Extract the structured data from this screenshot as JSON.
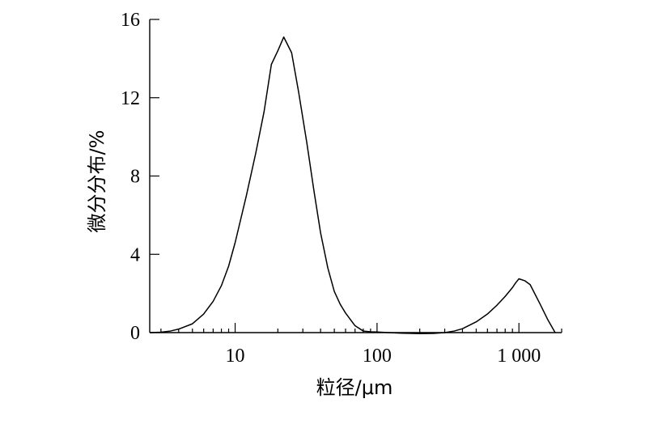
{
  "chart_data": {
    "type": "line",
    "title": "",
    "xlabel": "粒径/μm",
    "ylabel": "微分分布/%",
    "x_scale": "log",
    "xlim": [
      2.5,
      2000
    ],
    "ylim": [
      0,
      16
    ],
    "x_ticks": [
      {
        "value": 10,
        "label": "10"
      },
      {
        "value": 100,
        "label": "100"
      },
      {
        "value": 1000,
        "label": "1 000"
      }
    ],
    "y_ticks": [
      {
        "value": 0,
        "label": "0"
      },
      {
        "value": 4,
        "label": "4"
      },
      {
        "value": 8,
        "label": "8"
      },
      {
        "value": 12,
        "label": "12"
      },
      {
        "value": 16,
        "label": "16"
      }
    ],
    "grid": false,
    "series": [
      {
        "color": "#000000",
        "x": [
          2.5,
          3,
          3.5,
          4,
          5,
          6,
          7,
          8,
          9,
          10,
          12,
          14,
          16,
          18,
          20,
          22,
          25,
          28,
          32,
          36,
          40,
          45,
          50,
          55,
          60,
          70,
          80,
          90,
          100,
          120,
          150,
          200,
          250,
          300,
          350,
          400,
          500,
          600,
          700,
          800,
          900,
          950,
          1000,
          1100,
          1200,
          1400,
          1600,
          1800
        ],
        "y": [
          0,
          0.02,
          0.08,
          0.18,
          0.45,
          0.95,
          1.6,
          2.4,
          3.4,
          4.6,
          7.0,
          9.2,
          11.3,
          13.7,
          14.4,
          15.1,
          14.3,
          12.3,
          9.7,
          7.2,
          5.1,
          3.3,
          2.1,
          1.45,
          1.0,
          0.35,
          0.08,
          0.04,
          0.03,
          0.0,
          -0.03,
          -0.05,
          -0.04,
          0.0,
          0.08,
          0.2,
          0.55,
          0.95,
          1.4,
          1.85,
          2.3,
          2.55,
          2.75,
          2.65,
          2.45,
          1.5,
          0.65,
          0.0
        ]
      }
    ]
  }
}
